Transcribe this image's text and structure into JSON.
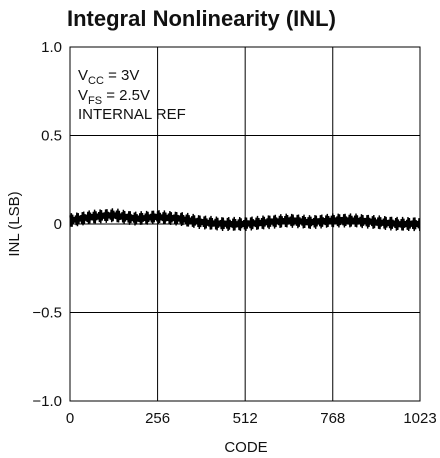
{
  "chart_data": {
    "type": "line",
    "title": "Integral Nonlinearity (INL)",
    "xlabel": "CODE",
    "ylabel": "INL (LSB)",
    "xlim": [
      0,
      1023
    ],
    "ylim": [
      -1.0,
      1.0
    ],
    "x_ticks": [
      0,
      256,
      512,
      768,
      1023
    ],
    "x_tick_labels": [
      "0",
      "256",
      "512",
      "768",
      "1023"
    ],
    "y_ticks": [
      1.0,
      0.5,
      0,
      -0.5,
      -1.0
    ],
    "y_tick_labels": [
      "1.0",
      "0.5",
      "0",
      "−0.5",
      "−1.0"
    ],
    "grid": true,
    "annotations": {
      "line1_main": "V",
      "line1_sub": "CC",
      "line1_rest": " = 3V",
      "line2_main": "V",
      "line2_sub": "FS",
      "line2_rest": " = 2.5V",
      "line3": "INTERNAL REF"
    },
    "series": [
      {
        "x": [
          0,
          64,
          128,
          192,
          256,
          320,
          384,
          448,
          512,
          576,
          640,
          704,
          768,
          832,
          896,
          960,
          1023
        ],
        "values": [
          0.02,
          0.04,
          0.05,
          0.03,
          0.04,
          0.03,
          0.01,
          0.0,
          0.0,
          0.01,
          0.02,
          0.01,
          0.02,
          0.02,
          0.01,
          0.0,
          0.0
        ],
        "ripple_peak_to_peak": 0.08,
        "color": "#000000"
      }
    ]
  }
}
